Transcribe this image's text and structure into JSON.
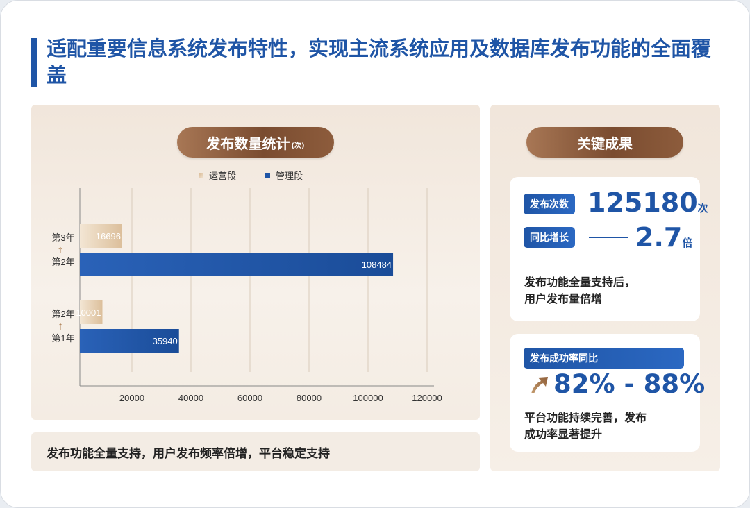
{
  "title": "适配重要信息系统发布特性，实现主流系统应用及数据库发布功能的全面覆盖",
  "chart_panel": {
    "pill_label": "发布数量统计",
    "pill_unit": "(次)",
    "bottom_note": "发布功能全量支持，用户发布频率倍增，平台稳定支持"
  },
  "chart_data": {
    "type": "bar",
    "orientation": "horizontal",
    "categories": [
      {
        "top": "第3年",
        "arrow": "↑",
        "bottom": "第2年"
      },
      {
        "top": "第2年",
        "arrow": "↑",
        "bottom": "第1年"
      }
    ],
    "series": [
      {
        "name": "运营段",
        "values": [
          16696,
          10001
        ],
        "color": "#e8d3b8"
      },
      {
        "name": "管理段",
        "values": [
          108484,
          35940
        ],
        "color": "#1f55a6"
      }
    ],
    "xlim": [
      0,
      120000
    ],
    "xticks": [
      20000,
      40000,
      60000,
      80000,
      100000,
      120000
    ],
    "grid": true,
    "legend_position": "top-center"
  },
  "results_panel": {
    "pill_label": "关键成果",
    "count_tag": "发布次数",
    "count_value": "125180",
    "count_unit": "次",
    "growth_tag": "同比增长",
    "growth_value": "2.7",
    "growth_unit": "倍",
    "count_desc_line1": "发布功能全量支持后，",
    "count_desc_line2": "用户发布量倍增",
    "success_tag": "发布成功率同比",
    "success_value": "82% - 88%",
    "success_desc_line1": "平台功能持续完善，发布",
    "success_desc_line2": "成功率显著提升"
  }
}
